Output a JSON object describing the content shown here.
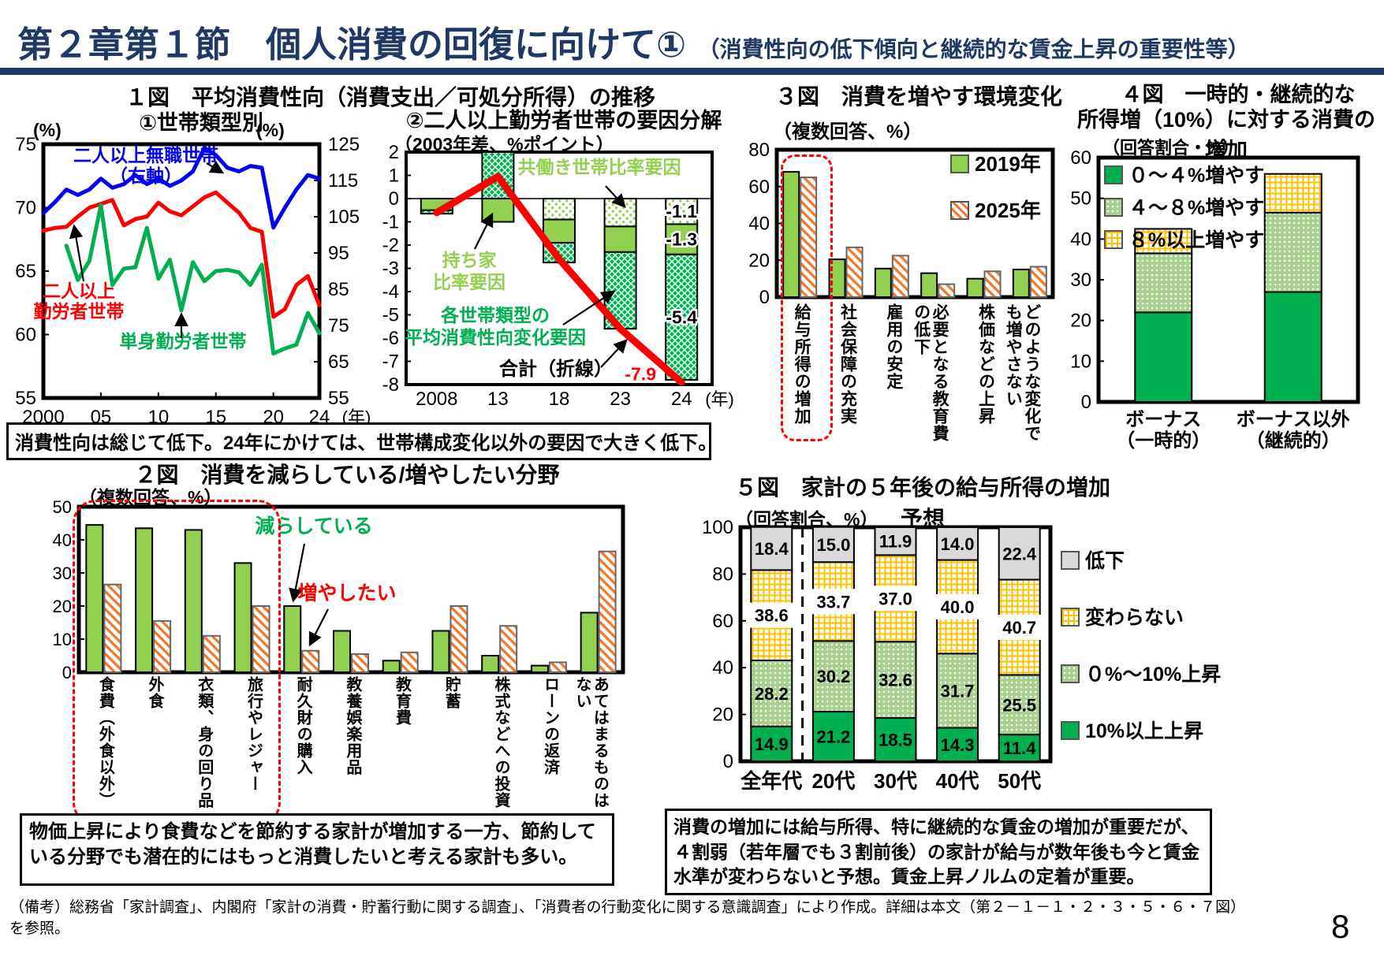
{
  "header": {
    "title": "第２章第１節　個人消費の回復に向けて①",
    "subtitle": "（消費性向の低下傾向と継続的な賃金上昇の重要性等）",
    "page_number": "8",
    "footnote": "（備考）総務省「家計調査」、内閣府「家計の消費・貯蓄行動に関する調査」、「消費者の行動変化に関する意識調査」により作成。詳細は本文（第２－１－１・２・３・５・６・７図）を参照。"
  },
  "notes": {
    "fig1_note": "消費性向は総じて低下。24年にかけては、世帯構成変化以外の要因で大きく低下。",
    "fig2_note": "物価上昇により食費などを節約する家計が増加する一方、節約している分野でも潜在的にはもっと消費したいと考える家計も多い。",
    "fig5_note": "消費の増加には給与所得、特に継続的な賃金の増加が重要だが、４割弱（若年層でも３割前後）の家計が給与が数年後も今と賃金水準が変わらないと予想。賃金上昇ノルムの定着が重要。"
  },
  "chart_data": {
    "fig1_line": {
      "type": "line",
      "title": "１図　平均消費性向（消費支出／可処分所得）の推移",
      "subtitle": "①世帯類型別",
      "left_axis": {
        "unit": "(%)",
        "min": 55,
        "max": 75,
        "ticks": [
          75,
          70,
          65,
          60,
          55
        ]
      },
      "right_axis": {
        "unit": "(%)",
        "min": 55,
        "max": 125,
        "ticks": [
          125,
          115,
          105,
          95,
          85,
          75,
          65,
          55
        ]
      },
      "x_ticks": [
        "2000",
        "05",
        "10",
        "15",
        "20",
        "24"
      ],
      "x_tick_years": [
        2000,
        2005,
        2010,
        2015,
        2020,
        2024
      ],
      "x_unit": "(年)",
      "series": [
        {
          "name": "二人以上無職世帯（右軸）",
          "label_lines": [
            "二人以上無職世帯",
            "（右軸）"
          ],
          "color": "#0000ee",
          "axis": "right",
          "start_year": 2000,
          "values": [
            106,
            109,
            112.5,
            111,
            112.5,
            115.5,
            113,
            114,
            116.5,
            114,
            115.5,
            113.5,
            115,
            117.5,
            124,
            122,
            118.5,
            117.5,
            119,
            118.5,
            102,
            107.5,
            112.5,
            116.5,
            115.5
          ]
        },
        {
          "name": "二人以上勤労者世帯",
          "label_lines": [
            "二人以上",
            "勤労者世帯"
          ],
          "color": "#ff0000",
          "axis": "left",
          "start_year": 2000,
          "values": [
            68.2,
            68.4,
            68.5,
            69.3,
            70,
            70.3,
            70.6,
            68.6,
            69.1,
            69.3,
            70.4,
            69.7,
            69.4,
            70.1,
            70.8,
            71.2,
            70.4,
            69.6,
            68.4,
            68.1,
            61.4,
            62,
            63.9,
            64.6,
            62.3
          ]
        },
        {
          "name": "単身勤労者世帯",
          "label_lines": [
            "単身勤労者世帯"
          ],
          "color": "#00b050",
          "axis": "left",
          "start_year": 2002,
          "values": [
            67,
            64.3,
            65.8,
            70.2,
            63.9,
            65.2,
            65.3,
            68.4,
            64.4,
            65.9,
            61.9,
            65.7,
            64.2,
            65,
            65.1,
            64.9,
            63.9,
            65.5,
            58.5,
            58.9,
            59.2,
            61.7,
            60.1
          ]
        }
      ]
    },
    "fig1_decomp": {
      "type": "bar-line",
      "title": "②二人以上勤労者世帯の要因分解",
      "subtitle": "（2003年差、%ポイント）",
      "ylim": [
        -8,
        2
      ],
      "yticks": [
        2,
        1,
        0,
        -1,
        -2,
        -3,
        -4,
        -5,
        -6,
        -7,
        -8
      ],
      "x_ticks": [
        "2008",
        "13",
        "18",
        "23",
        "24"
      ],
      "x_unit": "(年)",
      "segments": [
        {
          "name": "共働き世帯比率要因",
          "name_lines": [
            "共働き世帯比率要因"
          ],
          "pattern": "dots",
          "values": [
            0,
            0,
            -0.9,
            -1.2,
            -1.1
          ]
        },
        {
          "name": "持ち家比率要因",
          "name_lines": [
            "持ち家",
            "比率要因"
          ],
          "pattern": "lightgreen",
          "values": [
            -0.5,
            -1.0,
            -1.0,
            -1.1,
            -1.3
          ]
        },
        {
          "name": "各世帯類型の平均消費性向変化要因",
          "name_lines": [
            "各世帯類型の",
            "平均消費性向変化要因"
          ],
          "pattern": "cross",
          "values": [
            -0.15,
            2.0,
            -0.85,
            -3.3,
            -5.4
          ]
        }
      ],
      "line": {
        "name": "合計（折線）",
        "color": "#ff0000",
        "values": [
          -0.6,
          0.95,
          -2.6,
          -5.6,
          -7.9
        ]
      },
      "labels_last": [
        "-1.1",
        "-1.3",
        "-5.4",
        "-7.9"
      ]
    },
    "fig2_fields": {
      "type": "bar",
      "title": "２図　消費を減らしている/増やしたい分野",
      "subtitle": "（複数回答、%）",
      "ylim": [
        0,
        50
      ],
      "yticks": [
        50,
        40,
        30,
        20,
        10,
        0
      ],
      "categories": [
        "食費（外食以外）",
        "外食",
        "衣類、身の回り品",
        "旅行やレジャー",
        "耐久財の購入",
        "教養娯楽用品",
        "教育費",
        "貯蓄",
        "株式などへの投資",
        "ローンの返済",
        "あてはまるものはない"
      ],
      "series": [
        {
          "name": "減らしている",
          "color": "#00b050",
          "values": [
            44.5,
            43.5,
            43,
            33,
            20,
            12.5,
            3.5,
            12.5,
            5,
            2,
            18
          ]
        },
        {
          "name": "増やしたい",
          "color": "#ff0000",
          "values": [
            26.5,
            15.5,
            11,
            20,
            6.5,
            5.5,
            6,
            20,
            14,
            3,
            36.5
          ]
        }
      ]
    },
    "fig3_env": {
      "type": "bar",
      "title": "３図　消費を増やす環境変化",
      "subtitle": "（複数回答、%）",
      "ylim": [
        0,
        80
      ],
      "yticks": [
        80,
        60,
        40,
        20,
        0
      ],
      "categories": [
        "給与所得の増加",
        "社会保障の充実",
        "雇用の安定",
        "必要となる教育費の低下",
        "株価などの上昇",
        "どのような変化でも増やさない"
      ],
      "series": [
        {
          "name": "2019年",
          "values": [
            68,
            20.5,
            15.5,
            13,
            10,
            15
          ]
        },
        {
          "name": "2025年",
          "values": [
            65,
            27,
            22.5,
            7,
            14,
            16.5
          ]
        }
      ]
    },
    "fig4_income": {
      "type": "stacked-bar",
      "title_line1": "４図　一時的・継続的な",
      "title_line2": "所得増（10%）に対する消費の増加",
      "subtitle": "（回答割合・%）",
      "ylim": [
        0,
        60
      ],
      "yticks": [
        60,
        50,
        40,
        30,
        20,
        10,
        0
      ],
      "categories": [
        [
          "ボーナス",
          "（一時的）"
        ],
        [
          "ボーナス以外",
          "（継続的）"
        ]
      ],
      "series": [
        {
          "name": "０～４%増やす",
          "values": [
            22,
            27
          ]
        },
        {
          "name": "４～８%増やす",
          "values": [
            14.5,
            19.5
          ]
        },
        {
          "name": "８%以上増やす",
          "values": [
            6,
            9.5
          ]
        }
      ]
    },
    "fig5_expect": {
      "type": "stacked-bar",
      "title": "５図　家計の５年後の給与所得の増加予想",
      "subtitle": "（回答割合、%）",
      "ylim": [
        0,
        100
      ],
      "yticks": [
        100,
        80,
        60,
        40,
        20,
        0
      ],
      "categories": [
        "全年代",
        "20代",
        "30代",
        "40代",
        "50代"
      ],
      "series": [
        {
          "name": "10%以上上昇",
          "values": [
            14.9,
            21.2,
            18.5,
            14.3,
            11.4
          ]
        },
        {
          "name": "０%～10%上昇",
          "values": [
            28.2,
            30.2,
            32.6,
            31.7,
            25.5
          ]
        },
        {
          "name": "変わらない",
          "values": [
            38.6,
            33.7,
            37.0,
            40.0,
            40.7
          ]
        },
        {
          "name": "低下",
          "values": [
            18.4,
            15.0,
            11.9,
            14.0,
            22.4
          ]
        }
      ],
      "legend": [
        "低下",
        "変わらない",
        "０%～10%上昇",
        "10%以上上昇"
      ]
    }
  }
}
